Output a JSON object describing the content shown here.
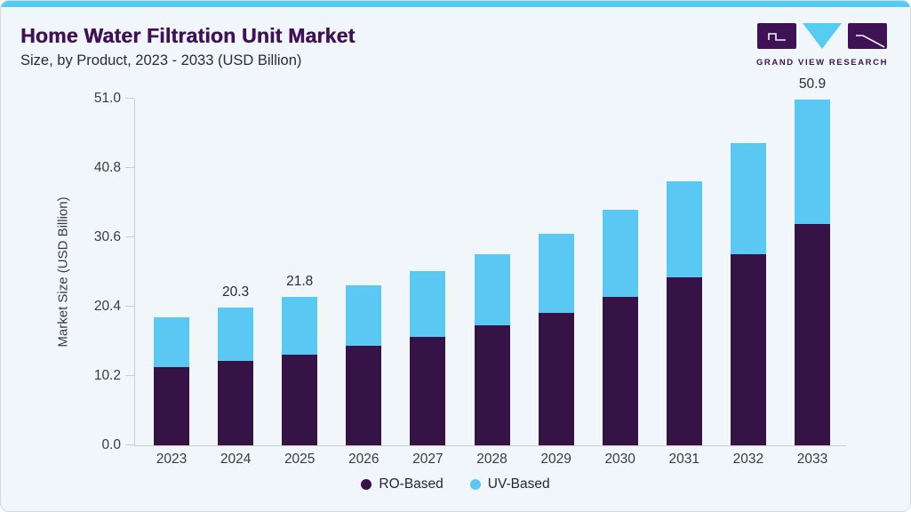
{
  "header": {
    "title": "Home Water Filtration Unit Market",
    "subtitle": "Size, by Product, 2023 - 2033 (USD Billion)"
  },
  "logo": {
    "text": "GRAND VIEW RESEARCH"
  },
  "colors": {
    "accent_bar": "#56ccf2",
    "card_background": "#f1f6fa",
    "card_border": "#d3dbe2",
    "title_text": "#3e1254",
    "body_text": "#2b2b33",
    "axis_text": "#3a3a44",
    "axis_line": "#c8cdd6",
    "ro_based": "#351347",
    "uv_based": "#5bc8f4",
    "logo_purple": "#3e1254",
    "logo_blue": "#56ccf2"
  },
  "chart_data": {
    "type": "bar",
    "stacked": true,
    "title": "Home Water Filtration Unit Market Size, by Product, 2023 - 2033 (USD Billion)",
    "categories": [
      "2023",
      "2024",
      "2025",
      "2026",
      "2027",
      "2028",
      "2029",
      "2030",
      "2031",
      "2032",
      "2033"
    ],
    "series": [
      {
        "name": "RO-Based",
        "color": "#351347",
        "values": [
          11.5,
          12.4,
          13.4,
          14.6,
          15.9,
          17.6,
          19.5,
          21.8,
          24.7,
          28.1,
          32.5
        ]
      },
      {
        "name": "UV-Based",
        "color": "#5bc8f4",
        "values": [
          7.3,
          7.9,
          8.4,
          8.9,
          9.7,
          10.5,
          11.6,
          12.9,
          14.2,
          16.3,
          18.4
        ]
      }
    ],
    "totals": [
      18.8,
      20.3,
      21.8,
      23.5,
      25.6,
      28.1,
      31.1,
      34.7,
      38.9,
      44.4,
      50.9
    ],
    "bar_value_labels": {
      "2024": "20.3",
      "2025": "21.8",
      "2033": "50.9"
    },
    "xlabel": "",
    "ylabel": "Market Size (USD Billion)",
    "ylim": [
      0,
      51.0
    ],
    "y_ticks": [
      "0.0",
      "10.2",
      "20.4",
      "30.6",
      "40.8",
      "51.0"
    ],
    "grid": false,
    "legend_position": "bottom"
  }
}
